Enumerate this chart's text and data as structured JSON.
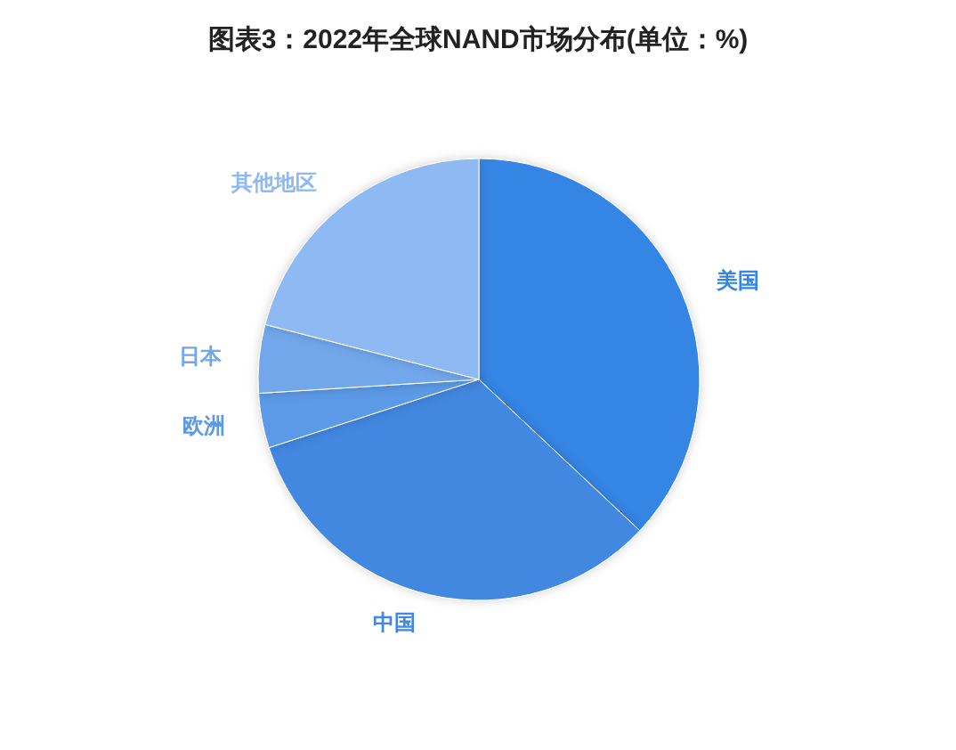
{
  "chart_data": {
    "type": "pie",
    "title": "图表3：2022年全球NAND市场分布(单位：%)",
    "categories": [
      "美国",
      "中国",
      "欧洲",
      "日本",
      "其他地区"
    ],
    "values": [
      37,
      33,
      4,
      5,
      21
    ],
    "colors": [
      "#3585e5",
      "#4287e0",
      "#5b99e6",
      "#72a7ec",
      "#8eb9f2"
    ]
  }
}
